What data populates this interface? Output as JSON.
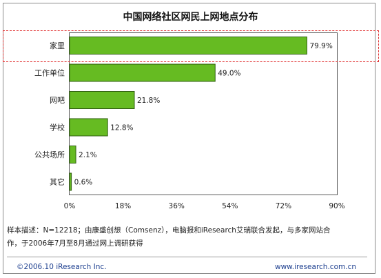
{
  "chart_data": {
    "type": "bar",
    "orientation": "horizontal",
    "title": "中国网络社区网民上网地点分布",
    "categories": [
      "家里",
      "工作单位",
      "网吧",
      "学校",
      "公共场所",
      "其它"
    ],
    "values": [
      79.9,
      49.0,
      21.8,
      12.8,
      2.1,
      0.6
    ],
    "value_labels": [
      "79.9%",
      "49.0%",
      "21.8%",
      "12.8%",
      "2.1%",
      "0.6%"
    ],
    "xlim": [
      0,
      90
    ],
    "x_ticks": [
      "0%",
      "18%",
      "36%",
      "54%",
      "72%",
      "90%"
    ],
    "grid": false,
    "bar_color": "#66bb22",
    "highlight_color": "#e03030",
    "highlighted_category": "家里"
  },
  "note": {
    "line1": "样本描述：N=12218；由康盛创想（Comsenz），电脑报和iResearch艾瑞联合发起，与多家网站合",
    "line2": "作，于2006年7月至8月通过网上调研获得"
  },
  "footer": {
    "copyright": "©2006.10 iResearch Inc.",
    "url": "www.iresearch.com.cn"
  }
}
